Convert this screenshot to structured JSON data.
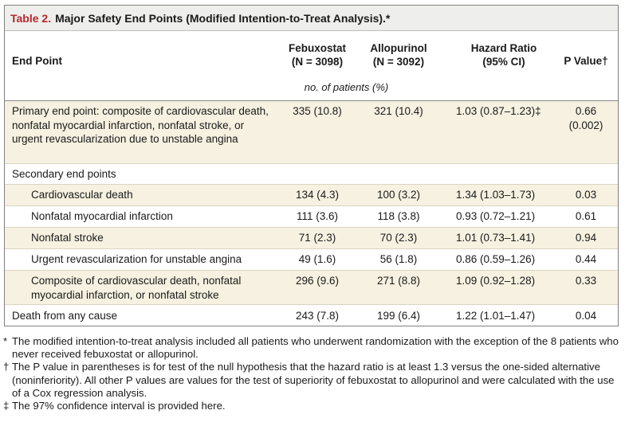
{
  "table": {
    "title_number": "Table 2.",
    "title_text": "Major Safety End Points (Modified Intention-to-Treat Analysis).*",
    "headers": {
      "end_point": "End Point",
      "febuxostat": "Febuxostat",
      "febuxostat_n": "(N = 3098)",
      "allopurinol": "Allopurinol",
      "allopurinol_n": "(N = 3092)",
      "hazard_ratio": "Hazard Ratio",
      "hazard_ci": "(95% CI)",
      "p_value": "P Value†"
    },
    "units_row": "no. of patients (%)",
    "rows": [
      {
        "end_point": "Primary end point: composite of cardiovascular death, nonfatal myocardial infarction, nonfatal stroke, or urgent revascularization due to unstable angina",
        "febuxostat": "335 (10.8)",
        "allopurinol": "321 (10.4)",
        "hazard_ratio": "1.03 (0.87–1.23)‡",
        "p_value": "0.66",
        "p_value_2": "(0.002)"
      },
      {
        "end_point": "Secondary end points",
        "febuxostat": "",
        "allopurinol": "",
        "hazard_ratio": "",
        "p_value": ""
      },
      {
        "end_point": "Cardiovascular death",
        "febuxostat": "134 (4.3)",
        "allopurinol": "100 (3.2)",
        "hazard_ratio": "1.34 (1.03–1.73)",
        "p_value": "0.03"
      },
      {
        "end_point": "Nonfatal myocardial infarction",
        "febuxostat": "111 (3.6)",
        "allopurinol": "118 (3.8)",
        "hazard_ratio": "0.93 (0.72–1.21)",
        "p_value": "0.61"
      },
      {
        "end_point": "Nonfatal stroke",
        "febuxostat": "71 (2.3)",
        "allopurinol": "70 (2.3)",
        "hazard_ratio": "1.01 (0.73–1.41)",
        "p_value": "0.94"
      },
      {
        "end_point": "Urgent revascularization for unstable angina",
        "febuxostat": "49 (1.6)",
        "allopurinol": "56 (1.8)",
        "hazard_ratio": "0.86 (0.59–1.26)",
        "p_value": "0.44"
      },
      {
        "end_point": "Composite of cardiovascular death, nonfatal myocardial infarction, or nonfatal stroke",
        "febuxostat": "296 (9.6)",
        "allopurinol": "271 (8.8)",
        "hazard_ratio": "1.09 (0.92–1.28)",
        "p_value": "0.33"
      },
      {
        "end_point": "Death from any cause",
        "febuxostat": "243 (7.8)",
        "allopurinol": "199 (6.4)",
        "hazard_ratio": "1.22 (1.01–1.47)",
        "p_value": "0.04"
      }
    ]
  },
  "footnotes": [
    {
      "symbol": "*",
      "text": "The modified intention-to-treat analysis included all patients who underwent randomization with the exception of the 8 patients who never received febuxostat or allopurinol."
    },
    {
      "symbol": "†",
      "text": "The P value in parentheses is for test of the null hypothesis that the hazard ratio is at least 1.3 versus the one-sided alternative (noninferiority). All other P values are values for the test of superiority of febuxostat to allopurinol and were calculated with the use of a Cox regression analysis."
    },
    {
      "symbol": "‡",
      "text": "The 97% confidence interval is provided here."
    }
  ],
  "colors": {
    "title_accent": "#b3282d",
    "title_bg": "#eeeeec",
    "row_shade": "#f6f1e0"
  }
}
